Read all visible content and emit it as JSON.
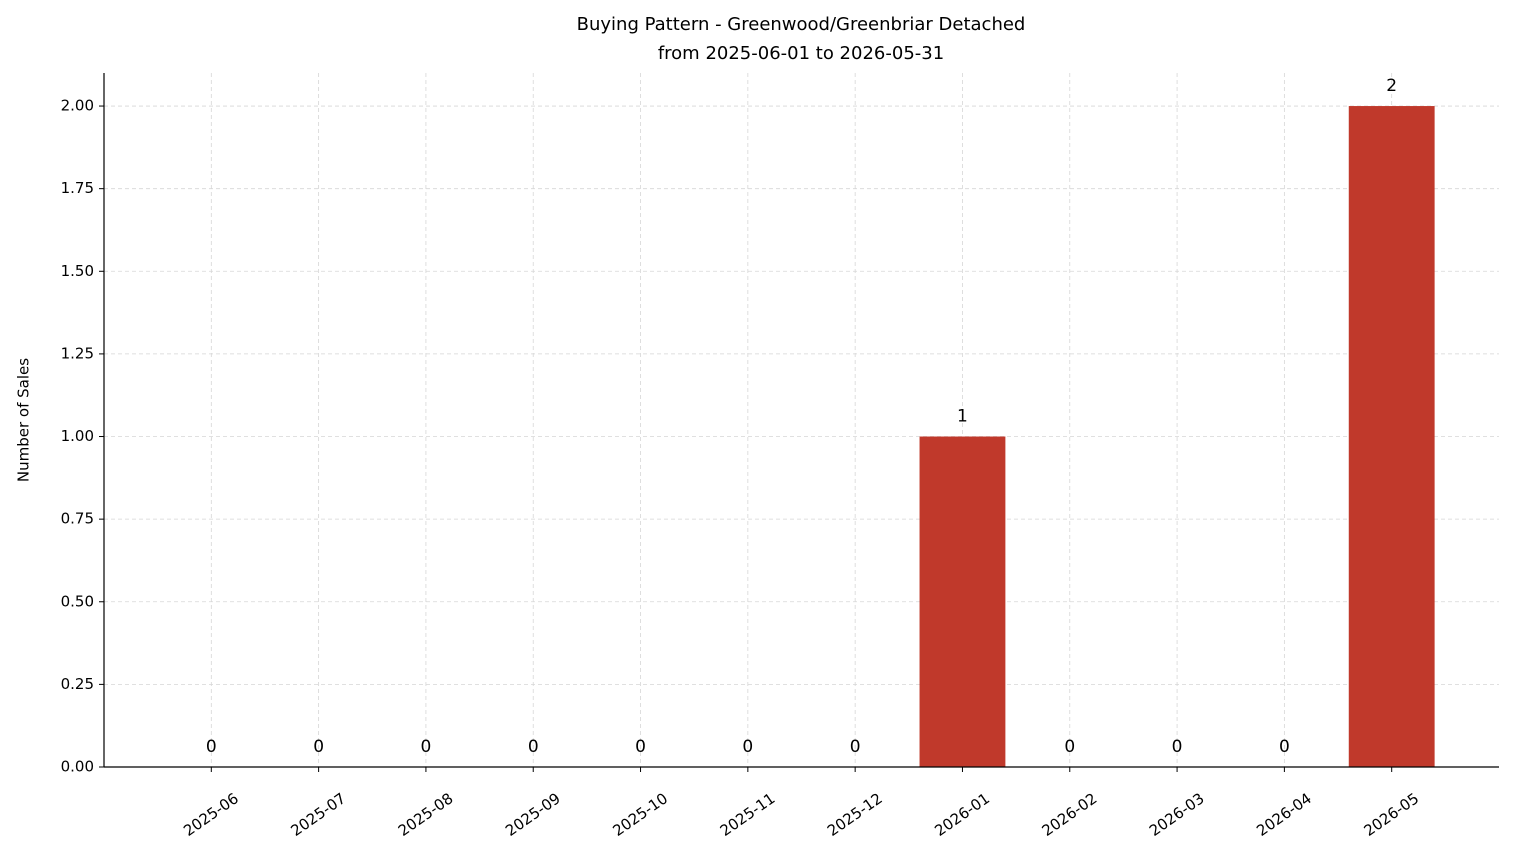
{
  "chart_data": {
    "type": "bar",
    "title": "Buying Pattern - Greenwood/Greenbriar Detached",
    "subtitle": "from 2025-06-01 to 2026-05-31",
    "y_label": "Number of Sales",
    "categories": [
      "2025-06",
      "2025-07",
      "2025-08",
      "2025-09",
      "2025-10",
      "2025-11",
      "2025-12",
      "2026-01",
      "2026-02",
      "2026-03",
      "2026-04",
      "2026-05"
    ],
    "values": [
      0,
      0,
      0,
      0,
      0,
      0,
      0,
      1,
      0,
      0,
      0,
      2
    ],
    "color": "#c0392b",
    "ylim": [
      0,
      2.1
    ],
    "yticks": [
      {
        "value": 0,
        "label": "0.00"
      },
      {
        "value": 0.25,
        "label": "0.25"
      },
      {
        "value": 0.5,
        "label": "0.50"
      },
      {
        "value": 0.75,
        "label": "0.75"
      },
      {
        "value": 1,
        "label": "1.00"
      },
      {
        "value": 1.25,
        "label": "1.25"
      },
      {
        "value": 1.5,
        "label": "1.50"
      },
      {
        "value": 1.75,
        "label": "1.75"
      },
      {
        "value": 2,
        "label": "2.00"
      }
    ],
    "grid": true
  }
}
